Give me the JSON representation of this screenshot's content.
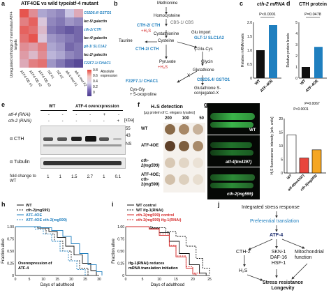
{
  "panel_letters": [
    "a",
    "b",
    "c",
    "d",
    "e",
    "f",
    "g",
    "h",
    "i",
    "j"
  ],
  "colors": {
    "blue": "#1f7fbf",
    "red": "#d42a2a",
    "dark": "#1a2a6c",
    "bar_orange": "#f5a623",
    "bar_red": "#e8453c",
    "bar_black": "#222222",
    "worm_green": "#3bb54a"
  },
  "a": {
    "title": "ATF4OE vs wild type/atf-4 mutant",
    "ylabel": "Upregulated orthologs of mammalian ATF4 targets",
    "rows": [
      "C02D5.4/ GSTO1",
      "lec-5/ galectin",
      "cth-2/ CTH",
      "lec-4/ galectin",
      "glt-1/ SLC1A2",
      "lec-2/ galectin",
      "F22F7.1/ CHAC1"
    ],
    "cols": [
      "ATF4 OE #1",
      "ATF4 OE #2",
      "ATF4 OE #3",
      "N2 #1",
      "N2 #2",
      "atf-4 mut #1",
      "atf-4 mut #2"
    ],
    "legend_title": "Absolute expression",
    "legend_ticks": [
      "0.8",
      "0.6",
      "0.4",
      "0.2",
      "0"
    ],
    "values": [
      [
        0.95,
        0.75,
        0.35,
        0.3,
        0.25,
        0.45,
        0.65
      ],
      [
        0.8,
        0.9,
        0.55,
        0.25,
        0.2,
        0.3,
        0.25
      ],
      [
        0.9,
        0.85,
        0.6,
        0.2,
        0.15,
        0.1,
        0.15
      ],
      [
        0.85,
        0.95,
        0.55,
        0.3,
        0.25,
        0.2,
        0.15
      ],
      [
        0.75,
        0.7,
        0.8,
        0.35,
        0.3,
        0.15,
        0.2
      ],
      [
        0.7,
        0.6,
        0.75,
        0.4,
        0.35,
        0.25,
        0.2
      ],
      [
        0.65,
        0.8,
        0.85,
        0.3,
        0.2,
        0.1,
        0.05
      ]
    ]
  },
  "b": {
    "nodes": {
      "methionine": "Methionine",
      "homocysteine": "Homocysteine",
      "cbs": "CBS-1/ CBS",
      "cth2a": "CTH-2/ CTH",
      "h2s_a": "+H₂S",
      "cystathionine": "Cystathionine",
      "taurine": "Taurine",
      "cysteine": "Cysteine",
      "glu_import": "Glu import",
      "glt1": "GLT-1/ SLC1A2",
      "cth2b": "CTH-2/ CTH",
      "yglucys": "γ-Glu-Cys",
      "pyruvate": "Pyruvate",
      "h2s_b": "+H₂S",
      "glycin": "Glycin",
      "f22": "F22F7.1/ CHAC1",
      "glutathione": "Glutathione",
      "x": "X",
      "c02": "C02D5.4/ GSTO1",
      "cysgly": "Cys-Gly",
      "oxoproline": "+ 5-oxoproline",
      "gsconj": "Glutathione S-conjugated-X"
    }
  },
  "c": {
    "title": "cth-2 mRNA",
    "pvalue": "P<0.0001",
    "ylabel": "Relative mRNA levels",
    "yticks": [
      "0",
      "0.5",
      "1.0",
      "1.5",
      "2.0"
    ],
    "chart_data": {
      "type": "bar",
      "categories": [
        "WT",
        "ATF-4OE"
      ],
      "values": [
        1.0,
        1.9
      ],
      "ylim": [
        0,
        2.0
      ],
      "ylabel": "Relative mRNA levels",
      "title": "cth-2 mRNA"
    }
  },
  "d": {
    "title": "CTH protein",
    "pvalue": "P=0.0478",
    "ylabel": "Relative protein levels",
    "yticks": [
      "0",
      "1",
      "2",
      "3",
      "4",
      "5"
    ],
    "chart_data": {
      "type": "bar",
      "categories": [
        "WT",
        "ATF-4OE"
      ],
      "values": [
        1.0,
        2.8
      ],
      "ylim": [
        0,
        5
      ],
      "ylabel": "Relative protein levels",
      "title": "CTH protein"
    }
  },
  "e": {
    "wt": "WT",
    "oe": "ATF-4 overexpression",
    "atf4_rnai": "atf-4 (RNAi)",
    "cth2_rnai": "cth-2 (RNAi)",
    "kda": "[kDa]",
    "m55": "55",
    "m43": "43",
    "ns": "NS",
    "cth": "α CTH",
    "tubulin": "α Tubulin",
    "fold_label": "fold change to WT",
    "signs_atf4": [
      "-",
      "-",
      "-",
      "-",
      "+",
      "-"
    ],
    "signs_cth2": [
      "-",
      "-",
      "-",
      "-",
      "-",
      "+"
    ],
    "fold": [
      "1",
      "1",
      "1.5",
      "2.7",
      "1",
      "0.1"
    ]
  },
  "f": {
    "title": "H₂S detection",
    "subtitle": "[μg protein of C. elegans lysates]",
    "conc": [
      "200",
      "100",
      "50"
    ],
    "rows": [
      "WT",
      "ATF-4OE",
      "cth-2(mg599)",
      "ATF-4OE; cth-2(mg599)"
    ]
  },
  "g": {
    "labels": [
      "WT",
      "atf-4(tm4397)",
      "cth-2(mg599)"
    ],
    "p1": "P<0.0001",
    "p2": "P=0.0067",
    "ylabel": "H₂S fluorescence intensity [arb. units]",
    "yticks": [
      "0",
      "5",
      "10",
      "15",
      "20"
    ],
    "chart_data": {
      "type": "bar",
      "categories": [
        "WT",
        "atf-4(tm4397)",
        "cth-2(mg599)"
      ],
      "values": [
        14,
        5.5,
        8.5
      ],
      "ylim": [
        0,
        20
      ]
    }
  },
  "h": {
    "legend": [
      "WT",
      "cth-2(mg599)",
      "ATF-4OE",
      "ATF-4OE cth-2(mg599)"
    ],
    "note": "Overexpression of ATF-4",
    "xlabel": "Days of adulthood",
    "ylabel": "Fraction alive",
    "xticks": [
      "0",
      "5",
      "10",
      "15",
      "20",
      "25",
      "30"
    ],
    "yticks": [
      "0",
      "0.25",
      "0.50",
      "0.75",
      "1.00"
    ]
  },
  "i": {
    "legend": [
      "WT control",
      "WT ifg-1(RNAi)",
      "cth-2(mg599) control",
      "cth-2(mg599) ifg-1(RNAi)"
    ],
    "note": "ifg-1(RNAi) reduces mRNA translation initiation",
    "xlabel": "Days of adulthood",
    "ylabel": "Fraction alive",
    "xticks": [
      "0",
      "5",
      "10",
      "15",
      "20",
      "25"
    ],
    "yticks": [
      "0",
      "0.25",
      "0.50",
      "0.75",
      "1.00"
    ]
  },
  "j": {
    "isr": "Integrated stress response",
    "pref": "Preferential translation",
    "atf4": "ATF-4",
    "cth2": "CTH-2",
    "skn": "SKN-1\nDAF-16\nHSF-1",
    "mito": "Mitochondrial function",
    "h2s": "H₂S",
    "stress": "Stress resistance Longevity"
  }
}
